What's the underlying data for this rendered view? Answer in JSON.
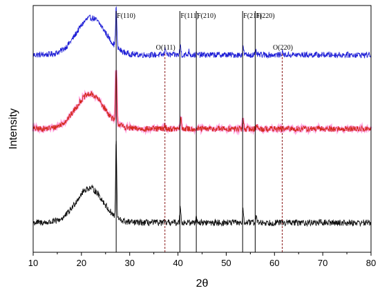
{
  "chart_data": {
    "type": "line",
    "xlabel": "2θ",
    "ylabel": "Intensity",
    "xlim": [
      10,
      80
    ],
    "x_ticks": [
      10,
      20,
      30,
      40,
      50,
      60,
      70,
      80
    ],
    "y_ticks_shown": false,
    "grid": false,
    "legend": "none",
    "series": [
      {
        "color": "#1f1fd6",
        "baseline": 0.8,
        "hump": {
          "center": 22,
          "width": 4.2,
          "height": 0.15,
          "noise": 0.012
        },
        "peaks": [
          {
            "x": 27.2,
            "height": 0.16,
            "width": 0.18
          },
          {
            "x": 37.4,
            "height": 0.03,
            "width": 0.2
          },
          {
            "x": 40.5,
            "height": 0.04,
            "width": 0.18
          },
          {
            "x": 42.3,
            "height": 0.015,
            "width": 0.2
          },
          {
            "x": 53.5,
            "height": 0.03,
            "width": 0.18
          },
          {
            "x": 56.2,
            "height": 0.01,
            "width": 0.18
          },
          {
            "x": 61.6,
            "height": 0.01,
            "width": 0.2
          }
        ]
      },
      {
        "color": "#d42a1c",
        "shadow_color": "#ff8fd8",
        "baseline": 0.5,
        "hump": {
          "center": 21.8,
          "width": 4.2,
          "height": 0.14,
          "noise": 0.012
        },
        "peaks": [
          {
            "x": 27.2,
            "height": 0.21,
            "width": 0.18
          },
          {
            "x": 37.3,
            "height": 0.015,
            "width": 0.2
          },
          {
            "x": 40.6,
            "height": 0.04,
            "width": 0.18
          },
          {
            "x": 53.5,
            "height": 0.035,
            "width": 0.18
          },
          {
            "x": 56.3,
            "height": 0.015,
            "width": 0.18
          }
        ]
      },
      {
        "color": "#111111",
        "baseline": 0.12,
        "hump": {
          "center": 21.7,
          "width": 4.0,
          "height": 0.14,
          "noise": 0.013
        },
        "peaks": [
          {
            "x": 27.2,
            "height": 0.31,
            "width": 0.16
          },
          {
            "x": 40.5,
            "height": 0.07,
            "width": 0.16
          },
          {
            "x": 43.8,
            "height": 0.03,
            "width": 0.16
          },
          {
            "x": 53.5,
            "height": 0.05,
            "width": 0.16
          },
          {
            "x": 56.2,
            "height": 0.03,
            "width": 0.16
          }
        ]
      }
    ],
    "reference_lines": [
      {
        "x": 27.2,
        "label": "F(110)",
        "style": "solid",
        "color": "#000000"
      },
      {
        "x": 37.3,
        "label": "O(111)",
        "style": "dashed",
        "color": "#8b1a1a"
      },
      {
        "x": 40.4,
        "label": "F(111)",
        "style": "solid",
        "color": "#000000"
      },
      {
        "x": 43.8,
        "label": "F(210)",
        "style": "solid",
        "color": "#000000"
      },
      {
        "x": 53.4,
        "label": "F(211)",
        "style": "solid",
        "color": "#000000"
      },
      {
        "x": 56.0,
        "label": "F(220)",
        "style": "solid",
        "color": "#000000"
      },
      {
        "x": 61.6,
        "label": "O(220)",
        "style": "dashed",
        "color": "#8b1a1a"
      }
    ]
  }
}
